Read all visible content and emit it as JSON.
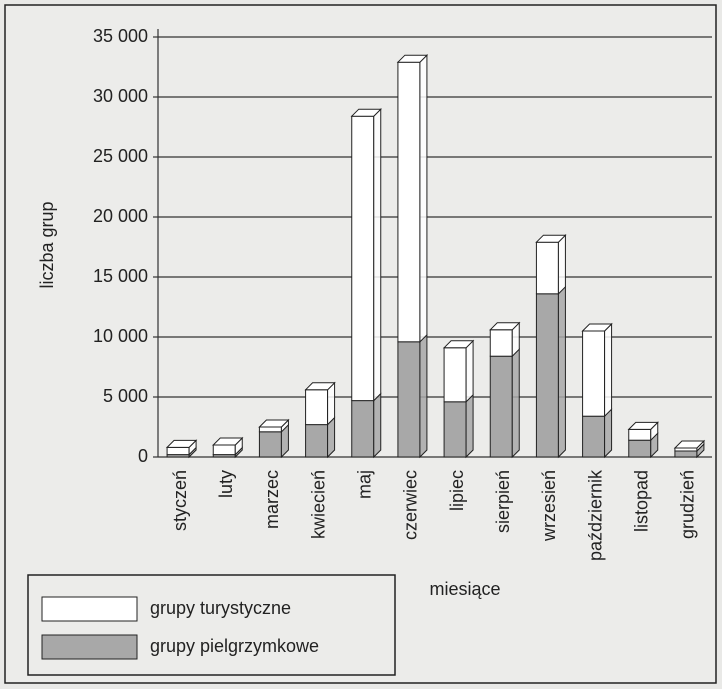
{
  "chart_data": {
    "type": "bar",
    "stacked": true,
    "x_label": "miesiące",
    "y_label": "liczba grup",
    "categories": [
      "styczeń",
      "luty",
      "marzec",
      "kwiecień",
      "maj",
      "czerwiec",
      "lipiec",
      "sierpień",
      "wrzesień",
      "październik",
      "listopad",
      "grudzień"
    ],
    "series": [
      {
        "name": "grupy turystyczne",
        "color": "#ffffff",
        "values": [
          600,
          800,
          400,
          2900,
          23700,
          23300,
          4500,
          2200,
          4300,
          7100,
          900,
          250
        ]
      },
      {
        "name": "grupy pielgrzymkowe",
        "color": "#a8a8a8",
        "values": [
          200,
          200,
          2100,
          2700,
          4700,
          9600,
          4600,
          8400,
          13600,
          3400,
          1400,
          500
        ]
      }
    ],
    "ylim": [
      0,
      35000
    ],
    "yticks": [
      0,
      {
        "value": 5000,
        "label": "5 000"
      },
      {
        "value": 10000,
        "label": "10 000"
      },
      {
        "value": 15000,
        "label": "15 000"
      },
      {
        "value": 20000,
        "label": "20 000"
      },
      {
        "value": 25000,
        "label": "25 000"
      },
      {
        "value": 30000,
        "label": "30 000"
      },
      {
        "value": 35000,
        "label": "35 000"
      }
    ],
    "grid": true,
    "legend": "bottom-left"
  }
}
